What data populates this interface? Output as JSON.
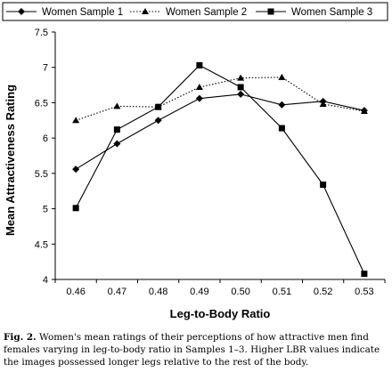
{
  "chart_data": {
    "type": "line",
    "title": "",
    "xlabel": "Leg-to-Body Ratio",
    "ylabel": "Mean Attractiveness Rating",
    "categories": [
      "0.46",
      "0.47",
      "0.48",
      "0.49",
      "0.50",
      "0.51",
      "0.52",
      "0.53"
    ],
    "ylim": [
      4,
      7.5
    ],
    "yticks": [
      "4",
      "4.5",
      "5",
      "5.5",
      "6",
      "6.5",
      "7",
      "7.5"
    ],
    "grid": false,
    "legend_position": "top",
    "series": [
      {
        "name": "Women Sample 1",
        "marker": "diamond",
        "line": "solid",
        "values": [
          5.56,
          5.92,
          6.25,
          6.56,
          6.62,
          6.47,
          6.52,
          6.39
        ]
      },
      {
        "name": "Women Sample 2",
        "marker": "triangle",
        "line": "dotted",
        "values": [
          6.25,
          6.45,
          6.44,
          6.72,
          6.85,
          6.86,
          6.48,
          6.38
        ]
      },
      {
        "name": "Women Sample 3",
        "marker": "square",
        "line": "solid",
        "values": [
          5.01,
          6.12,
          6.44,
          7.03,
          6.72,
          6.14,
          5.34,
          4.08
        ]
      }
    ]
  },
  "caption": {
    "label": "Fig. 2.",
    "text": " Women's mean ratings of their perceptions of how attractive men find females varying in leg-to-body ratio in Samples 1–3. Higher LBR values indicate the images possessed longer legs relative to the rest of the body."
  }
}
